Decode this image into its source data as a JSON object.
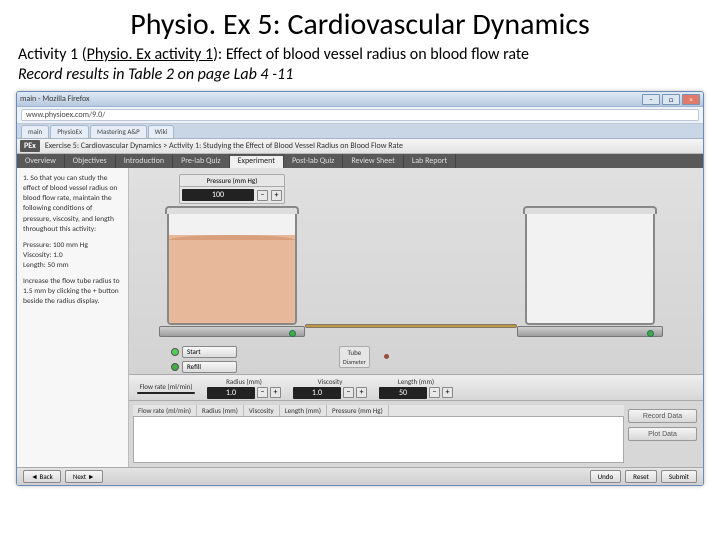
{
  "slide": {
    "title": "Physio. Ex 5: Cardiovascular Dynamics",
    "sub_line1a": "Activity 1 (",
    "sub_link": "Physio. Ex activity 1",
    "sub_line1b": "): Effect of blood vessel radius on blood flow rate",
    "sub_line2": "Record results in Table 2 on page Lab 4 -11"
  },
  "browser": {
    "title": "main - Mozilla Firefox",
    "url": "www.physioex.com/9.0/",
    "tabs": [
      "main",
      "PhysioEx",
      "Mastering A&P",
      "Wiki"
    ]
  },
  "app": {
    "badge": "PEx",
    "breadcrumb": "Exercise 5: Cardiovascular Dynamics > Activity 1: Studying the Effect of Blood Vessel Radius on Blood Flow Rate",
    "nav": [
      "Overview",
      "Objectives",
      "Introduction",
      "Pre-lab Quiz",
      "Experiment",
      "Post-lab Quiz",
      "Review Sheet",
      "Lab Report"
    ],
    "nav_active": "Experiment"
  },
  "instructions": {
    "p1": "1. So that you can study the effect of blood vessel radius on blood flow rate, maintain the following conditions of pressure, viscosity, and length throughout this activity:",
    "p2": "Pressure: 100 mm Hg\nViscosity: 1.0\nLength: 50 mm",
    "p3": "Increase the flow tube radius to 1.5 mm by clicking the + button beside the radius display."
  },
  "pressure": {
    "label": "Pressure (mm Hg)",
    "value": "100"
  },
  "controls": {
    "start": "Start",
    "refill": "Refill"
  },
  "tube": {
    "label": "Tube",
    "sublabel": "Diameter"
  },
  "params": {
    "flow": {
      "label": "Flow rate (ml/min)",
      "value": ""
    },
    "radius": {
      "label": "Radius (mm)",
      "value": "1.0"
    },
    "viscosity": {
      "label": "Viscosity",
      "value": "1.0"
    },
    "length": {
      "label": "Length (mm)",
      "value": "50"
    }
  },
  "table_cols": [
    "Flow rate (ml/min)",
    "Radius (mm)",
    "Viscosity",
    "Length (mm)",
    "Pressure (mm Hg)"
  ],
  "results_btns": {
    "record": "Record Data",
    "plot": "Plot Data"
  },
  "footer": {
    "back": "◄ Back",
    "next": "Next ►",
    "undo": "Undo",
    "reset": "Reset",
    "submit": "Submit"
  },
  "colors": {
    "blood": "#e8b89a",
    "tab_bg": "#595959",
    "frame": "#6a8bb8"
  }
}
